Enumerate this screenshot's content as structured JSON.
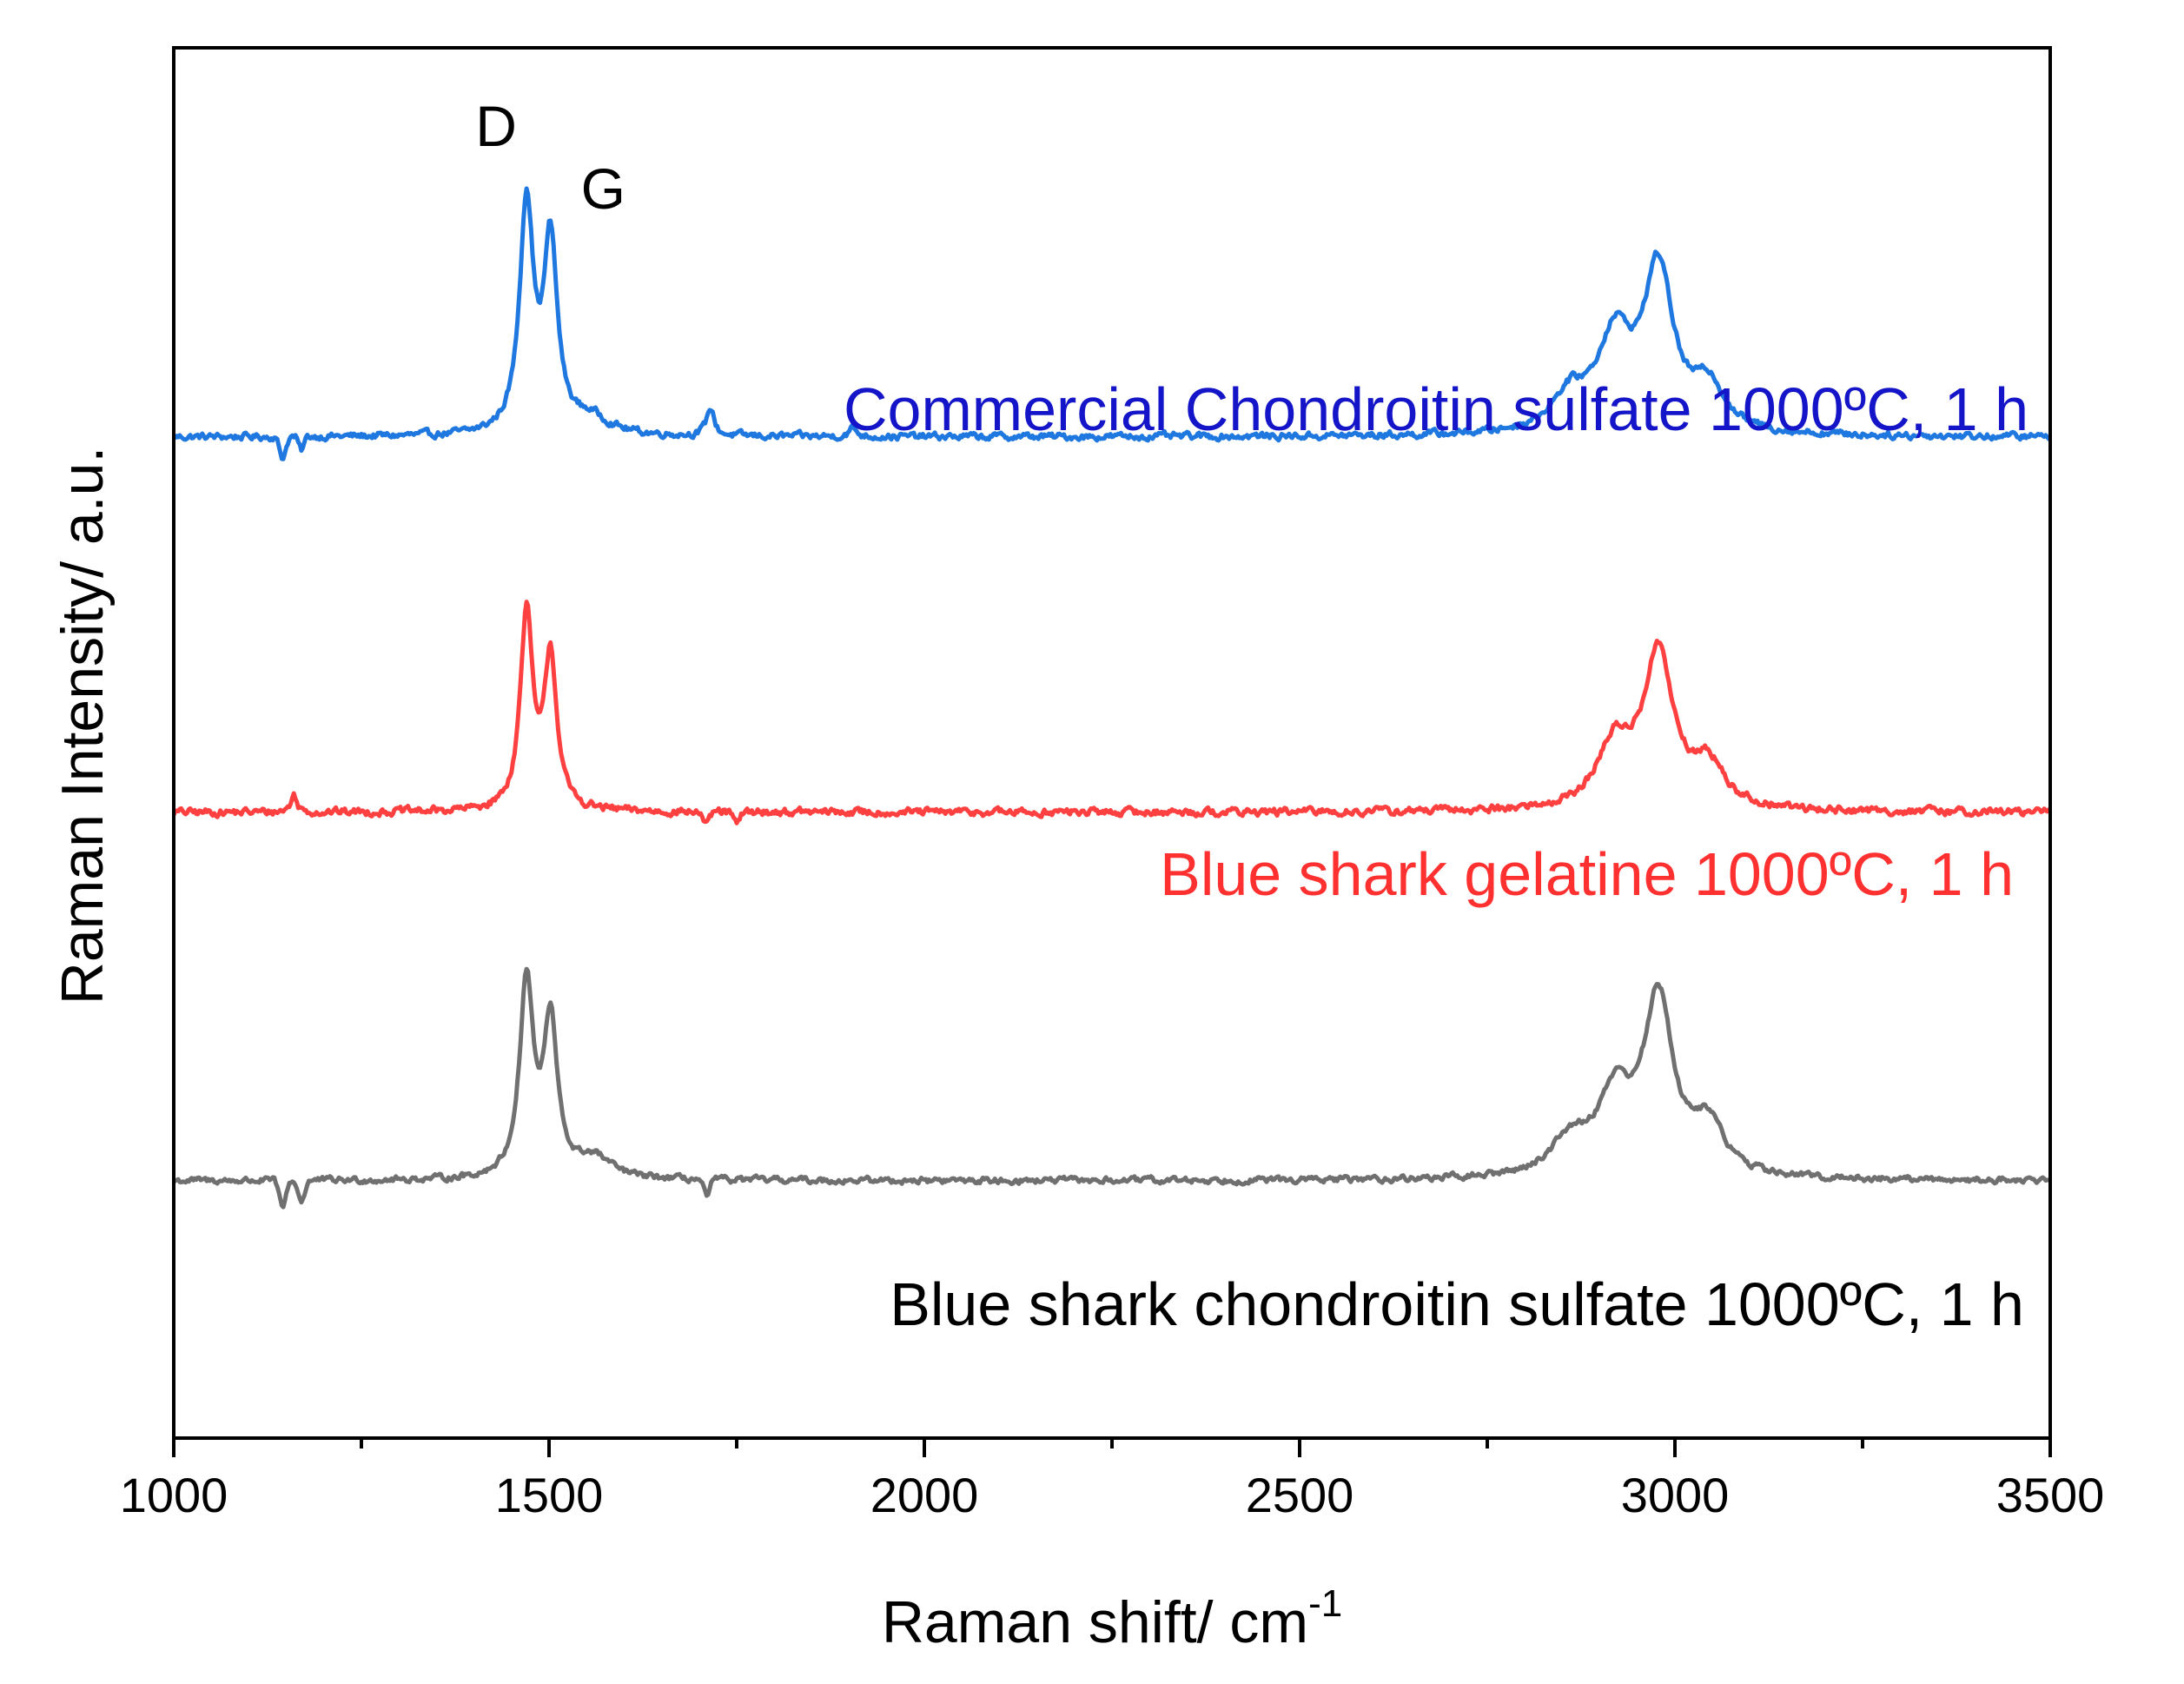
{
  "chart_data": {
    "type": "line",
    "xlabel": "Raman shift/ cm",
    "xlabel_superscript": "-1",
    "ylabel": "Raman Intensity/ a.u.",
    "xlim": [
      1000,
      3500
    ],
    "xticks": [
      1000,
      1500,
      2000,
      2500,
      3000,
      3500
    ],
    "xticks_minor": [
      1250,
      1750,
      2250,
      2750,
      3250
    ],
    "ylim": [
      0,
      100
    ],
    "yticks": [],
    "grid": false,
    "legend": "none",
    "annotations": [
      {
        "text": "D",
        "x": 1470
      },
      {
        "text": "G",
        "x": 1520
      }
    ],
    "series": [
      {
        "name": "Commercial Chondroitin sulfate 1000ºC, 1 h",
        "color": "#1f77e0",
        "label_color": "#1414c8",
        "baseline": 72,
        "peaks": [
          {
            "x": 1470,
            "height": 16.5,
            "width": 11
          },
          {
            "x": 1502,
            "height": 13.5,
            "width": 11
          },
          {
            "x": 1555,
            "height": 1.2,
            "width": 30
          },
          {
            "x": 1715,
            "height": 2.0,
            "width": 6
          },
          {
            "x": 1905,
            "height": 0.6,
            "width": 6
          },
          {
            "x": 2860,
            "height": 2.5,
            "width": 30
          },
          {
            "x": 2920,
            "height": 6.5,
            "width": 28
          },
          {
            "x": 2978,
            "height": 11.5,
            "width": 24
          },
          {
            "x": 3045,
            "height": 3.2,
            "width": 25
          }
        ],
        "dips": [
          {
            "x": 1145,
            "depth": 1.5,
            "width": 6
          },
          {
            "x": 1170,
            "depth": 1.0,
            "width": 5
          }
        ],
        "noise": 0.45
      },
      {
        "name": "Blue shark gelatine 1000ºC, 1 h",
        "color": "#ff4040",
        "label_color": "#ff3030",
        "baseline": 45,
        "peaks": [
          {
            "x": 1470,
            "height": 14.0,
            "width": 10
          },
          {
            "x": 1502,
            "height": 11.0,
            "width": 10
          },
          {
            "x": 1160,
            "height": 1.2,
            "width": 5
          },
          {
            "x": 2920,
            "height": 4.5,
            "width": 28
          },
          {
            "x": 2978,
            "height": 11.0,
            "width": 24
          },
          {
            "x": 3045,
            "height": 3.0,
            "width": 25
          }
        ],
        "dips": [
          {
            "x": 1710,
            "depth": 1.0,
            "width": 6
          },
          {
            "x": 1750,
            "depth": 0.9,
            "width": 6
          }
        ],
        "noise": 0.5
      },
      {
        "name": "Blue shark chondroitin sulfate 1000ºC, 1 h",
        "color": "#707070",
        "label_color": "#000000",
        "baseline": 18.5,
        "peaks": [
          {
            "x": 1470,
            "height": 14.0,
            "width": 11
          },
          {
            "x": 1502,
            "height": 11.0,
            "width": 11
          },
          {
            "x": 1560,
            "height": 1.5,
            "width": 28
          },
          {
            "x": 2860,
            "height": 2.5,
            "width": 30
          },
          {
            "x": 2920,
            "height": 5.5,
            "width": 28
          },
          {
            "x": 2978,
            "height": 12.5,
            "width": 24
          },
          {
            "x": 3045,
            "height": 3.5,
            "width": 25
          }
        ],
        "dips": [
          {
            "x": 1145,
            "depth": 2.0,
            "width": 6
          },
          {
            "x": 1170,
            "depth": 1.5,
            "width": 6
          },
          {
            "x": 1710,
            "depth": 1.2,
            "width": 6
          }
        ],
        "noise": 0.4
      }
    ]
  }
}
